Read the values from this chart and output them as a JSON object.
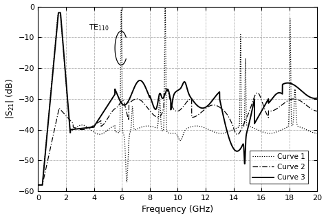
{
  "title": "",
  "xlabel": "Frequency (GHz)",
  "ylabel": "|S$_{21}$| (dB)",
  "xlim": [
    0,
    20
  ],
  "ylim": [
    -60,
    0
  ],
  "xticks": [
    0,
    2,
    4,
    6,
    8,
    10,
    12,
    14,
    16,
    18,
    20
  ],
  "yticks": [
    0,
    -10,
    -20,
    -30,
    -40,
    -50,
    -60
  ],
  "grid_color": "#aaaaaa",
  "annotation_text": "TE$_{110}$",
  "curve1_color": "black",
  "curve2_color": "black",
  "curve3_color": "black",
  "legend_labels": [
    "Curve 1",
    "Curve 2",
    "Curve 3"
  ],
  "background_color": "white"
}
